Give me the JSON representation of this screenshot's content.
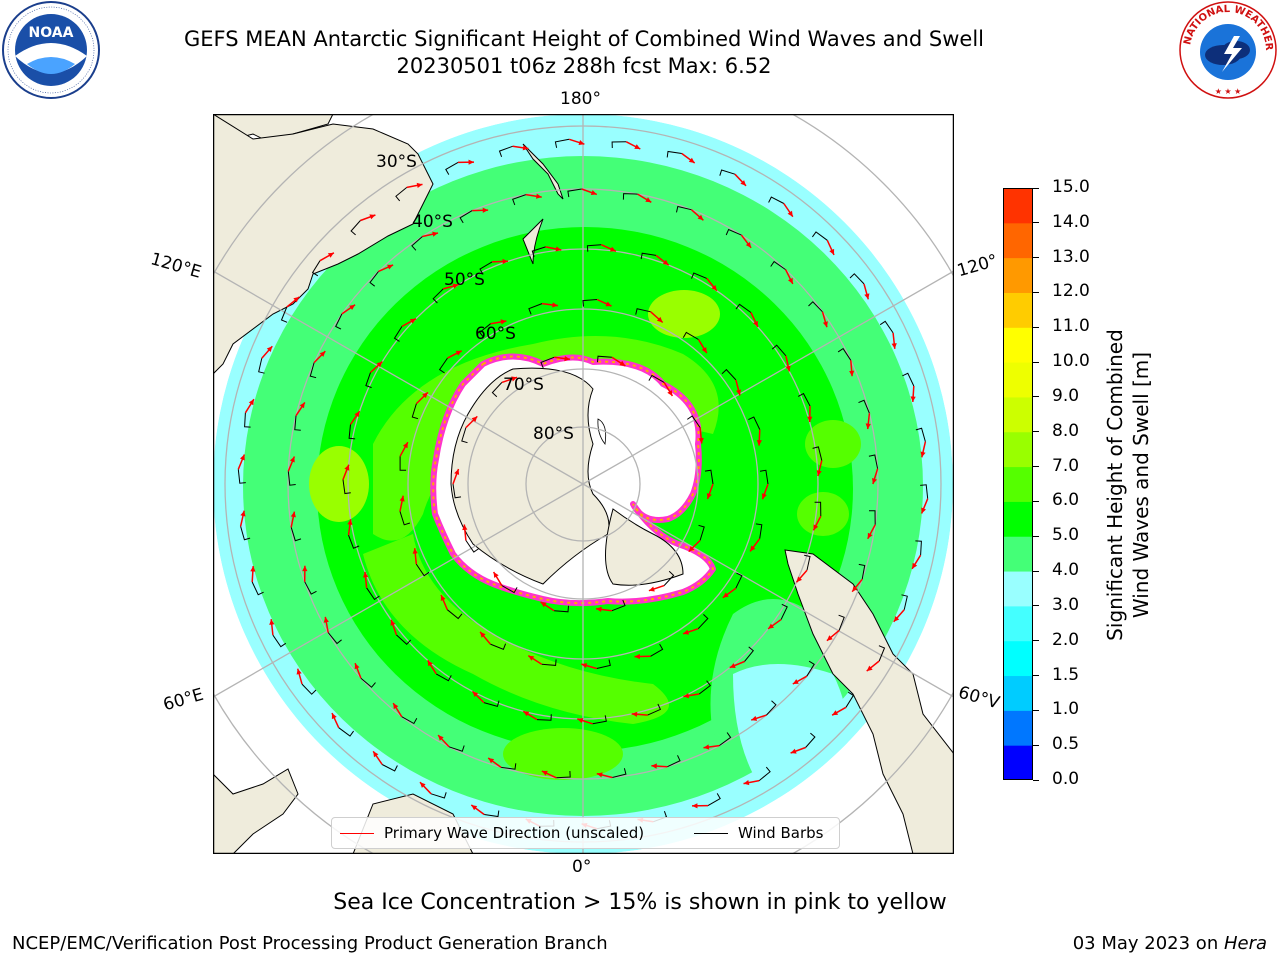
{
  "header": {
    "title_line1": "GEFS MEAN Antarctic Significant Height of Combined Wind Waves and Swell",
    "title_line2": "20230501 t06z 288h fcst   Max: 6.52"
  },
  "logos": {
    "left": {
      "text": "NOAA",
      "ring_text": "NATIONAL OCEANIC AND ATMOSPHERIC ADMINISTRATION · U.S. DEPARTMENT OF COMMERCE"
    },
    "right": {
      "ring_text": "NATIONAL WEATHER SERVICE"
    }
  },
  "map": {
    "longitude_labels": {
      "top": "180°",
      "bottom": "0°",
      "left_upper": "120°E",
      "right_upper": "120°",
      "left_lower": "60°E",
      "right_lower": "60°V"
    },
    "latitude_labels": [
      "30°S",
      "40°S",
      "50°S",
      "60°S",
      "70°S",
      "80°S"
    ],
    "colors": {
      "land": "#efecdc",
      "ice_edge_pink": "#ff33cc",
      "ice_edge_orange": "#ffaa00",
      "wave_arrow": "#ff0000",
      "wind_barb": "#000000",
      "graticule": "#b4b4b4"
    }
  },
  "legend": {
    "items": [
      {
        "label": "Primary Wave Direction (unscaled)",
        "color": "#ff0000"
      },
      {
        "label": "Wind Barbs",
        "color": "#000000"
      }
    ]
  },
  "colorbar": {
    "title_line1": "Significant Height of Combined",
    "title_line2": "Wind Waves and Swell [m]",
    "ticks": [
      "0.0",
      "0.5",
      "1.0",
      "1.5",
      "2.0",
      "3.0",
      "4.0",
      "5.0",
      "6.0",
      "7.0",
      "8.0",
      "9.0",
      "10.0",
      "11.0",
      "12.0",
      "13.0",
      "14.0",
      "15.0"
    ],
    "colors": [
      "#0000ff",
      "#0077ff",
      "#00ccff",
      "#00ffff",
      "#44ffff",
      "#99ffff",
      "#44ff77",
      "#00ff00",
      "#55ff00",
      "#99ff00",
      "#ccff00",
      "#eeff00",
      "#ffff00",
      "#ffcc00",
      "#ff9900",
      "#ff6600",
      "#ff3300",
      "#ff0000"
    ]
  },
  "subtitle": "Sea Ice Concentration > 15% is shown in pink to yellow",
  "footer": {
    "left": "NCEP/EMC/Verification Post Processing Product Generation Branch",
    "right_prefix": "03 May 2023 on ",
    "right_host": "Hera"
  }
}
